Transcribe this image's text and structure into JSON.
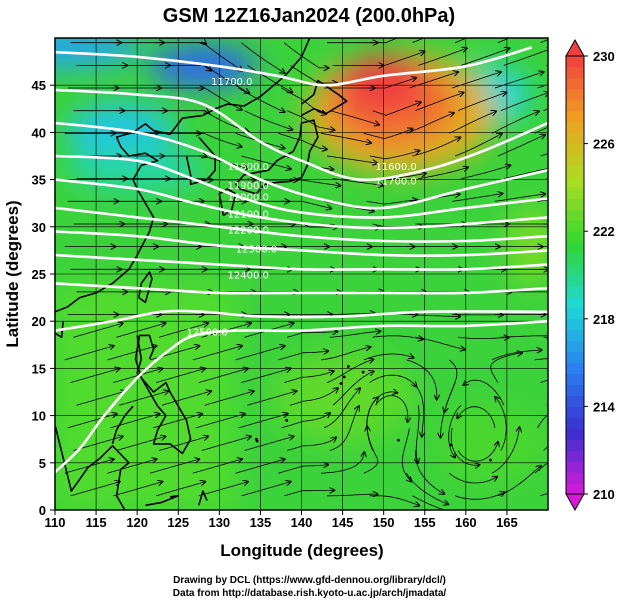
{
  "chart_data": {
    "type": "heatmap",
    "title": "GSM 12Z16Jan2024 (200.0hPa)",
    "xlabel": "Longitude (degrees)",
    "ylabel": "Latitude  (degrees)",
    "xlim": [
      110,
      170
    ],
    "ylim": [
      0,
      50
    ],
    "xticks": [
      110,
      115,
      120,
      125,
      130,
      135,
      140,
      145,
      150,
      155,
      160,
      165
    ],
    "yticks": [
      0,
      5,
      10,
      15,
      20,
      25,
      30,
      35,
      40,
      45
    ],
    "grid": true,
    "colorbar": {
      "min": 210,
      "max": 230,
      "ticks": [
        210,
        214,
        218,
        222,
        226,
        230
      ],
      "placement": "right",
      "colors": [
        "#d81ad8",
        "#3a2fd0",
        "#2a7ff0",
        "#1fd8d8",
        "#30d630",
        "#aadd22",
        "#f0a020",
        "#f04040"
      ]
    },
    "field_centers": [
      {
        "lon": 150,
        "lat": 45,
        "value": 230
      },
      {
        "lon": 120,
        "lat": 45,
        "value": 216
      },
      {
        "lon": 112,
        "lat": 48,
        "value": 218
      },
      {
        "lon": 150,
        "lat": 5,
        "value": 223
      }
    ],
    "contours": [
      {
        "label": "11600.0",
        "points": [
          [
            110,
            48.5
          ],
          [
            120,
            48
          ],
          [
            130,
            47
          ],
          [
            137,
            46
          ],
          [
            143,
            45
          ],
          [
            150,
            46
          ],
          [
            160,
            47
          ],
          [
            168,
            49
          ]
        ]
      },
      {
        "label": "11700.0",
        "points": [
          [
            110,
            44.5
          ],
          [
            120,
            44
          ],
          [
            128,
            43
          ],
          [
            135,
            39
          ],
          [
            140,
            37
          ],
          [
            147,
            35
          ],
          [
            155,
            36
          ],
          [
            162,
            38
          ],
          [
            170,
            41
          ]
        ]
      },
      {
        "label": "11800.0",
        "points": [
          [
            110,
            41
          ],
          [
            120,
            40
          ],
          [
            128,
            38
          ],
          [
            135,
            35
          ],
          [
            142,
            33
          ],
          [
            150,
            32
          ],
          [
            160,
            34
          ],
          [
            170,
            36
          ]
        ]
      },
      {
        "label": "11900.0",
        "points": [
          [
            110,
            37.5
          ],
          [
            120,
            37
          ],
          [
            127,
            35
          ],
          [
            133,
            33
          ],
          [
            140,
            31.5
          ],
          [
            150,
            31
          ],
          [
            160,
            32
          ],
          [
            170,
            33
          ]
        ]
      },
      {
        "label": "12000.0",
        "points": [
          [
            110,
            35
          ],
          [
            120,
            34
          ],
          [
            127,
            32.5
          ],
          [
            135,
            31
          ],
          [
            145,
            30
          ],
          [
            155,
            30
          ],
          [
            170,
            31
          ]
        ]
      },
      {
        "label": "12100.0",
        "points": [
          [
            110,
            32
          ],
          [
            120,
            31
          ],
          [
            130,
            30
          ],
          [
            140,
            29
          ],
          [
            150,
            28.5
          ],
          [
            160,
            28.5
          ],
          [
            170,
            29
          ]
        ]
      },
      {
        "label": "12200.0",
        "points": [
          [
            110,
            29.5
          ],
          [
            120,
            29
          ],
          [
            130,
            28
          ],
          [
            140,
            27.5
          ],
          [
            150,
            27
          ],
          [
            160,
            27
          ],
          [
            170,
            27.5
          ]
        ]
      },
      {
        "label": "12300.0",
        "points": [
          [
            110,
            27
          ],
          [
            120,
            26.5
          ],
          [
            130,
            26
          ],
          [
            140,
            25.5
          ],
          [
            150,
            25.5
          ],
          [
            160,
            25.5
          ],
          [
            170,
            26
          ]
        ]
      },
      {
        "label": "12400.0",
        "points": [
          [
            110,
            24
          ],
          [
            120,
            23.5
          ],
          [
            130,
            23
          ],
          [
            140,
            23
          ],
          [
            150,
            23
          ],
          [
            160,
            23
          ],
          [
            170,
            23.5
          ]
        ]
      },
      {
        "label": "12500.0",
        "points": [
          [
            110,
            19
          ],
          [
            117,
            20
          ],
          [
            123,
            21
          ],
          [
            128,
            21
          ],
          [
            135,
            20.5
          ],
          [
            145,
            20.5
          ],
          [
            155,
            21
          ],
          [
            170,
            21
          ]
        ]
      },
      {
        "label": "",
        "points": [
          [
            110,
            4
          ],
          [
            113,
            6.5
          ],
          [
            116,
            10
          ],
          [
            120,
            14
          ],
          [
            124,
            17
          ],
          [
            127,
            18.5
          ],
          [
            132,
            19
          ],
          [
            140,
            19
          ],
          [
            150,
            19.5
          ],
          [
            160,
            19.5
          ],
          [
            170,
            20
          ]
        ]
      }
    ],
    "contour_labels": [
      {
        "text": "11700.0",
        "lon": 129,
        "lat": 45
      },
      {
        "text": "11800.0",
        "lon": 131,
        "lat": 36
      },
      {
        "text": "11900.0",
        "lon": 131,
        "lat": 34
      },
      {
        "text": "12000.0",
        "lon": 131,
        "lat": 32.8
      },
      {
        "text": "12100.0",
        "lon": 131,
        "lat": 31
      },
      {
        "text": "12200.0",
        "lon": 131,
        "lat": 29.3
      },
      {
        "text": "12300.0",
        "lon": 132,
        "lat": 27.3
      },
      {
        "text": "12400.0",
        "lon": 131,
        "lat": 24.5
      },
      {
        "text": "12500.0",
        "lon": 126,
        "lat": 18.5
      },
      {
        "text": "11600.0",
        "lon": 149,
        "lat": 36
      },
      {
        "text": "11700.0",
        "lon": 149,
        "lat": 34.5
      }
    ]
  },
  "credits": {
    "line1": "Drawing by DCL (https://www.gfd-dennou.org/library/dcl/)",
    "line2": "Data from http://database.rish.kyoto-u.ac.jp/arch/jmadata/"
  }
}
